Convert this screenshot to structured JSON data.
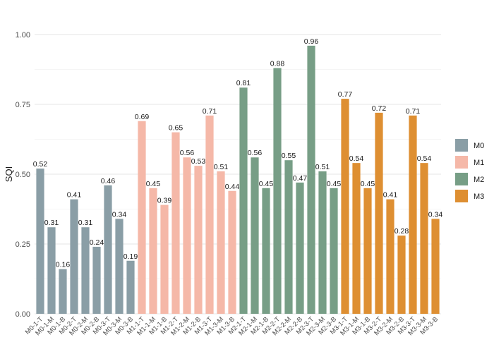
{
  "chart_data": {
    "type": "bar",
    "title": "",
    "xlabel": "",
    "ylabel": "SQI",
    "ylim": [
      0,
      1
    ],
    "yticks": [
      "0.00",
      "0.25",
      "0.50",
      "0.75",
      "1.00"
    ],
    "grid": true,
    "legend_position": "right",
    "legend": [
      {
        "name": "M0",
        "color": "#8a9ea6"
      },
      {
        "name": "M1",
        "color": "#f5b8a8"
      },
      {
        "name": "M2",
        "color": "#779e86"
      },
      {
        "name": "M3",
        "color": "#de8f32"
      }
    ],
    "categories": [
      "M0-1-T",
      "M0-1-M",
      "M0-1-B",
      "M0-2-T",
      "M0-2-M",
      "M0-2-B",
      "M0-3-T",
      "M0-3-M",
      "M0-3-B",
      "M1-1-T",
      "M1-1-M",
      "M1-1-B",
      "M1-2-T",
      "M1-2-M",
      "M1-2-B",
      "M1-3-T",
      "M1-3-M",
      "M1-3-B",
      "M2-1-T",
      "M2-1-M",
      "M2-1-B",
      "M2-2-T",
      "M2-2-M",
      "M2-2-B",
      "M2-3-T",
      "M2-3-M",
      "M2-3-B",
      "M3-1-T",
      "M3-1-M",
      "M3-1-B",
      "M3-2-T",
      "M3-2-M",
      "M3-2-B",
      "M3-3-T",
      "M3-3-M",
      "M3-3-B"
    ],
    "values": [
      0.52,
      0.31,
      0.16,
      0.41,
      0.31,
      0.24,
      0.46,
      0.34,
      0.19,
      0.69,
      0.45,
      0.39,
      0.65,
      0.56,
      0.53,
      0.71,
      0.51,
      0.44,
      0.81,
      0.56,
      0.45,
      0.88,
      0.55,
      0.47,
      0.96,
      0.51,
      0.45,
      0.77,
      0.54,
      0.45,
      0.72,
      0.41,
      0.28,
      0.71,
      0.54,
      0.34
    ],
    "labels": [
      "0.52",
      "0.31",
      "0.16",
      "0.41",
      "0.31",
      "0.24",
      "0.46",
      "0.34",
      "0.19",
      "0.69",
      "0.45",
      "0.39",
      "0.65",
      "0.56",
      "0.53",
      "0.71",
      "0.51",
      "0.44",
      "0.81",
      "0.56",
      "0.45",
      "0.88",
      "0.55",
      "0.47",
      "0.96",
      "0.51",
      "0.45",
      "0.77",
      "0.54",
      "0.45",
      "0.72",
      "0.41",
      "0.28",
      "0.71",
      "0.54",
      "0.34"
    ],
    "groups": [
      "M0",
      "M0",
      "M0",
      "M0",
      "M0",
      "M0",
      "M0",
      "M0",
      "M0",
      "M1",
      "M1",
      "M1",
      "M1",
      "M1",
      "M1",
      "M1",
      "M1",
      "M1",
      "M2",
      "M2",
      "M2",
      "M2",
      "M2",
      "M2",
      "M2",
      "M2",
      "M2",
      "M3",
      "M3",
      "M3",
      "M3",
      "M3",
      "M3",
      "M3",
      "M3",
      "M3"
    ]
  }
}
